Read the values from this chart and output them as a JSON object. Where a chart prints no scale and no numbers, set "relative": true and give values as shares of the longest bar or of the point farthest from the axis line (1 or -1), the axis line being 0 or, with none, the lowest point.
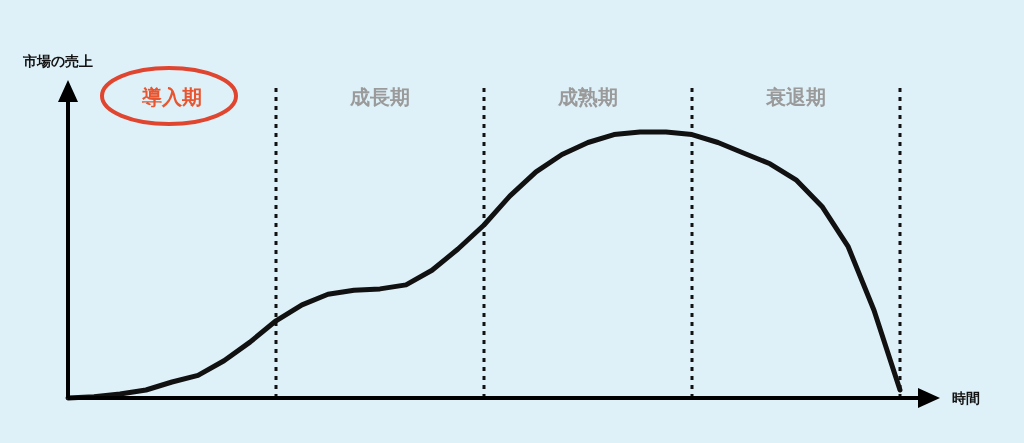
{
  "chart_data": {
    "type": "line",
    "relative": true,
    "grid": "x",
    "xlabel": "時間",
    "ylabel": "市場の売上",
    "annotations": [
      "導入期",
      "成長期",
      "成熟期",
      "衰退期"
    ],
    "categories": [
      null,
      null,
      null,
      null,
      null,
      null,
      null,
      null,
      null,
      null,
      null,
      null,
      null,
      null,
      null,
      null,
      null,
      null,
      null,
      null,
      null,
      null,
      null,
      null,
      null,
      null,
      null,
      null,
      null,
      null,
      null,
      null,
      null
    ],
    "series": [
      {
        "color": "#111111",
        "values": [
          0,
          0.005,
          0.015,
          0.03,
          0.06,
          0.085,
          0.14,
          0.21,
          0.29,
          0.35,
          0.39,
          0.405,
          0.41,
          0.425,
          0.48,
          0.56,
          0.65,
          0.76,
          0.85,
          0.915,
          0.96,
          0.99,
          1.0,
          1.0,
          0.99,
          0.96,
          0.92,
          0.88,
          0.82,
          0.72,
          0.57,
          0.33,
          0.03
        ]
      }
    ]
  }
}
